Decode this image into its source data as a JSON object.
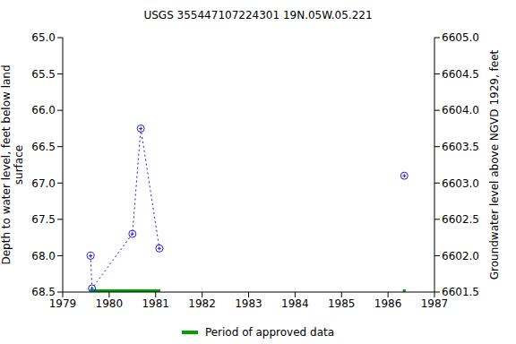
{
  "chart_data": {
    "type": "line",
    "title": "USGS 355447107224301 19N.05W.05.221",
    "y_label": "Depth to water level, feet below land surface",
    "y2_label": "Groundwater level above NGVD 1929, feet",
    "xlim": [
      1979,
      1987
    ],
    "xticks": [
      1979,
      1980,
      1981,
      1982,
      1983,
      1984,
      1985,
      1986,
      1987
    ],
    "ylim": [
      68.5,
      65
    ],
    "yticks": [
      {
        "value": 65,
        "label": "65.0"
      },
      65.5,
      {
        "value": 66,
        "label": "66.0"
      },
      66.5,
      {
        "value": 67,
        "label": "67.0"
      },
      67.5,
      {
        "value": 68,
        "label": "68.0"
      },
      68.5
    ],
    "y2lim": [
      6601.5,
      6605
    ],
    "y2ticks": [
      6601.5,
      {
        "value": 6602,
        "label": "6602.0"
      },
      6602.5,
      {
        "value": 6603,
        "label": "6603.0"
      },
      6603.5,
      {
        "value": 6604,
        "label": "6604.0"
      },
      6604.5,
      {
        "value": 6605,
        "label": "6605.0"
      }
    ],
    "grid": false,
    "legend": "bottom",
    "series": [
      {
        "color": "#2020c8",
        "marker": "circle",
        "line_style": "dotted",
        "x": [
          1979.6,
          1979.63,
          1980.5,
          1980.68,
          1981.08
        ],
        "values": [
          68.0,
          68.45,
          67.7,
          66.25,
          67.9
        ]
      },
      {
        "color": "#2020c8",
        "marker": "circle",
        "line_style": "dotted",
        "x": [
          1986.35
        ],
        "values": [
          66.9
        ]
      }
    ],
    "approved_data": {
      "name": "Period of approved data",
      "color": "#00a000",
      "periods": [
        [
          1979.58,
          1981.1
        ],
        [
          1986.32,
          1986.38
        ]
      ]
    }
  }
}
